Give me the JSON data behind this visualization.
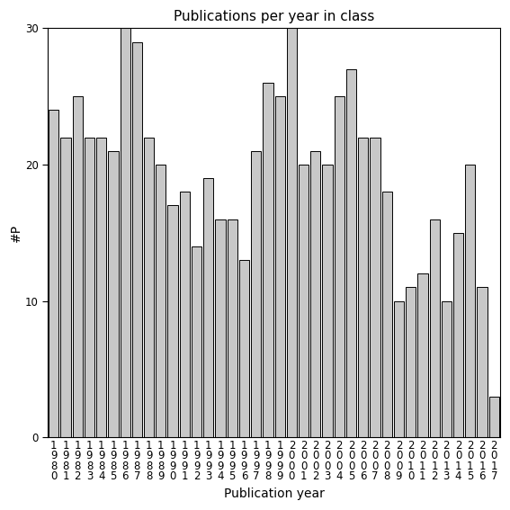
{
  "title": "Publications per year in class",
  "xlabel": "Publication year",
  "ylabel": "#P",
  "years": [
    1980,
    1981,
    1982,
    1983,
    1984,
    1985,
    1986,
    1987,
    1988,
    1989,
    1990,
    1991,
    1992,
    1993,
    1994,
    1995,
    1996,
    1997,
    1998,
    1999,
    2000,
    2001,
    2002,
    2003,
    2004,
    2005,
    2006,
    2007,
    2008,
    2009,
    2010,
    2011,
    2012,
    2013,
    2014,
    2015,
    2016,
    2017
  ],
  "values": [
    24,
    22,
    25,
    22,
    22,
    21,
    30,
    29,
    22,
    20,
    17,
    18,
    14,
    19,
    16,
    16,
    13,
    21,
    26,
    25,
    30,
    20,
    21,
    20,
    25,
    27,
    22,
    22,
    18,
    10,
    11,
    12,
    16,
    10,
    15,
    20,
    11,
    3
  ],
  "bar_color": "#c8c8c8",
  "bar_edge_color": "#000000",
  "bar_linewidth": 0.7,
  "ylim": [
    0,
    30
  ],
  "yticks": [
    0,
    10,
    20,
    30
  ],
  "background_color": "#ffffff",
  "title_fontsize": 11,
  "label_fontsize": 10,
  "ylabel_fontsize": 10,
  "tick_fontsize": 8.5
}
